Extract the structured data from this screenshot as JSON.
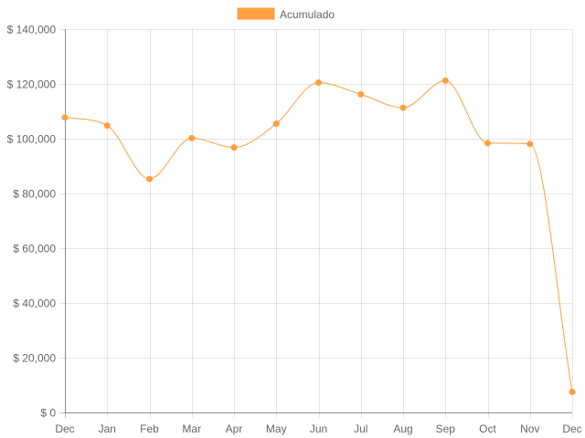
{
  "chart_data": {
    "type": "line",
    "categories": [
      "Dec",
      "Jan",
      "Feb",
      "Mar",
      "Apr",
      "May",
      "Jun",
      "Jul",
      "Aug",
      "Sep",
      "Oct",
      "Nov",
      "Dec"
    ],
    "series": [
      {
        "name": "Acumulado",
        "color": "#ff9f40",
        "values": [
          107800,
          104800,
          85300,
          100200,
          96800,
          105500,
          120500,
          116200,
          111300,
          121200,
          98400,
          98100,
          7500
        ]
      }
    ],
    "y_ticks": [
      "$ 0",
      "$ 20,000",
      "$ 40,000",
      "$ 60,000",
      "$ 80,000",
      "$ 100,000",
      "$ 120,000",
      "$ 140,000"
    ],
    "ylim": [
      0,
      140000
    ],
    "grid": true,
    "legend_position": "top-center",
    "smooth": true
  }
}
